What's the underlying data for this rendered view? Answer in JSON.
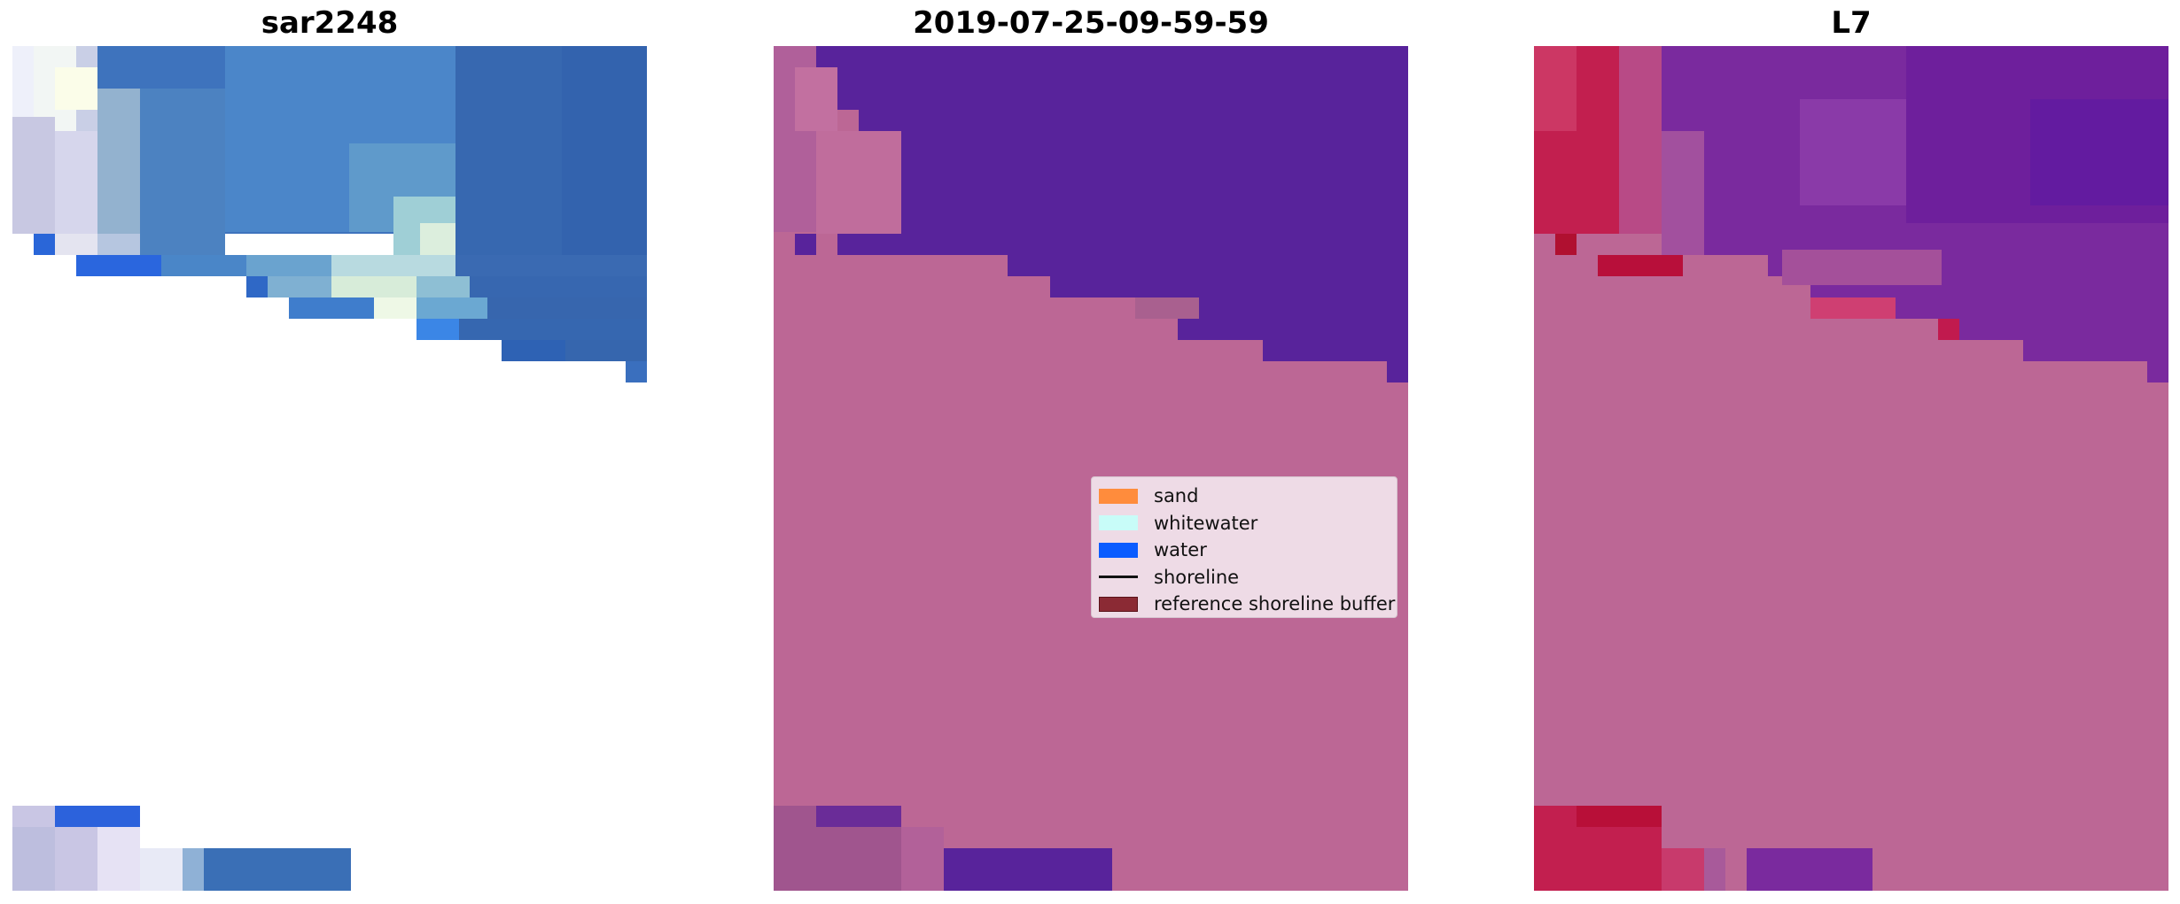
{
  "panels": [
    {
      "title": "sar2248"
    },
    {
      "title": "2019-07-25-09-59-59"
    },
    {
      "title": "L7"
    }
  ],
  "legend": {
    "items": [
      {
        "label": "sand",
        "kind": "patch",
        "color": "#ff8c3c",
        "edge": "#ff8c3c"
      },
      {
        "label": "whitewater",
        "kind": "patch",
        "color": "#c8fcf8",
        "edge": "#c8fcf8"
      },
      {
        "label": "water",
        "kind": "patch",
        "color": "#0a5cff",
        "edge": "#0a5cff"
      },
      {
        "label": "shoreline",
        "kind": "line",
        "color": "#111111"
      },
      {
        "label": "reference shoreline buffer",
        "kind": "patch",
        "color": "#8b2a34",
        "edge": "#5a1219"
      }
    ]
  },
  "colors": {
    "classified_land": "#bc6795",
    "classified_water": "#58239b",
    "rgb_water": "#3c6fb8",
    "l7_water": "#7a2a9e",
    "l7_red": "#c21f4f"
  }
}
